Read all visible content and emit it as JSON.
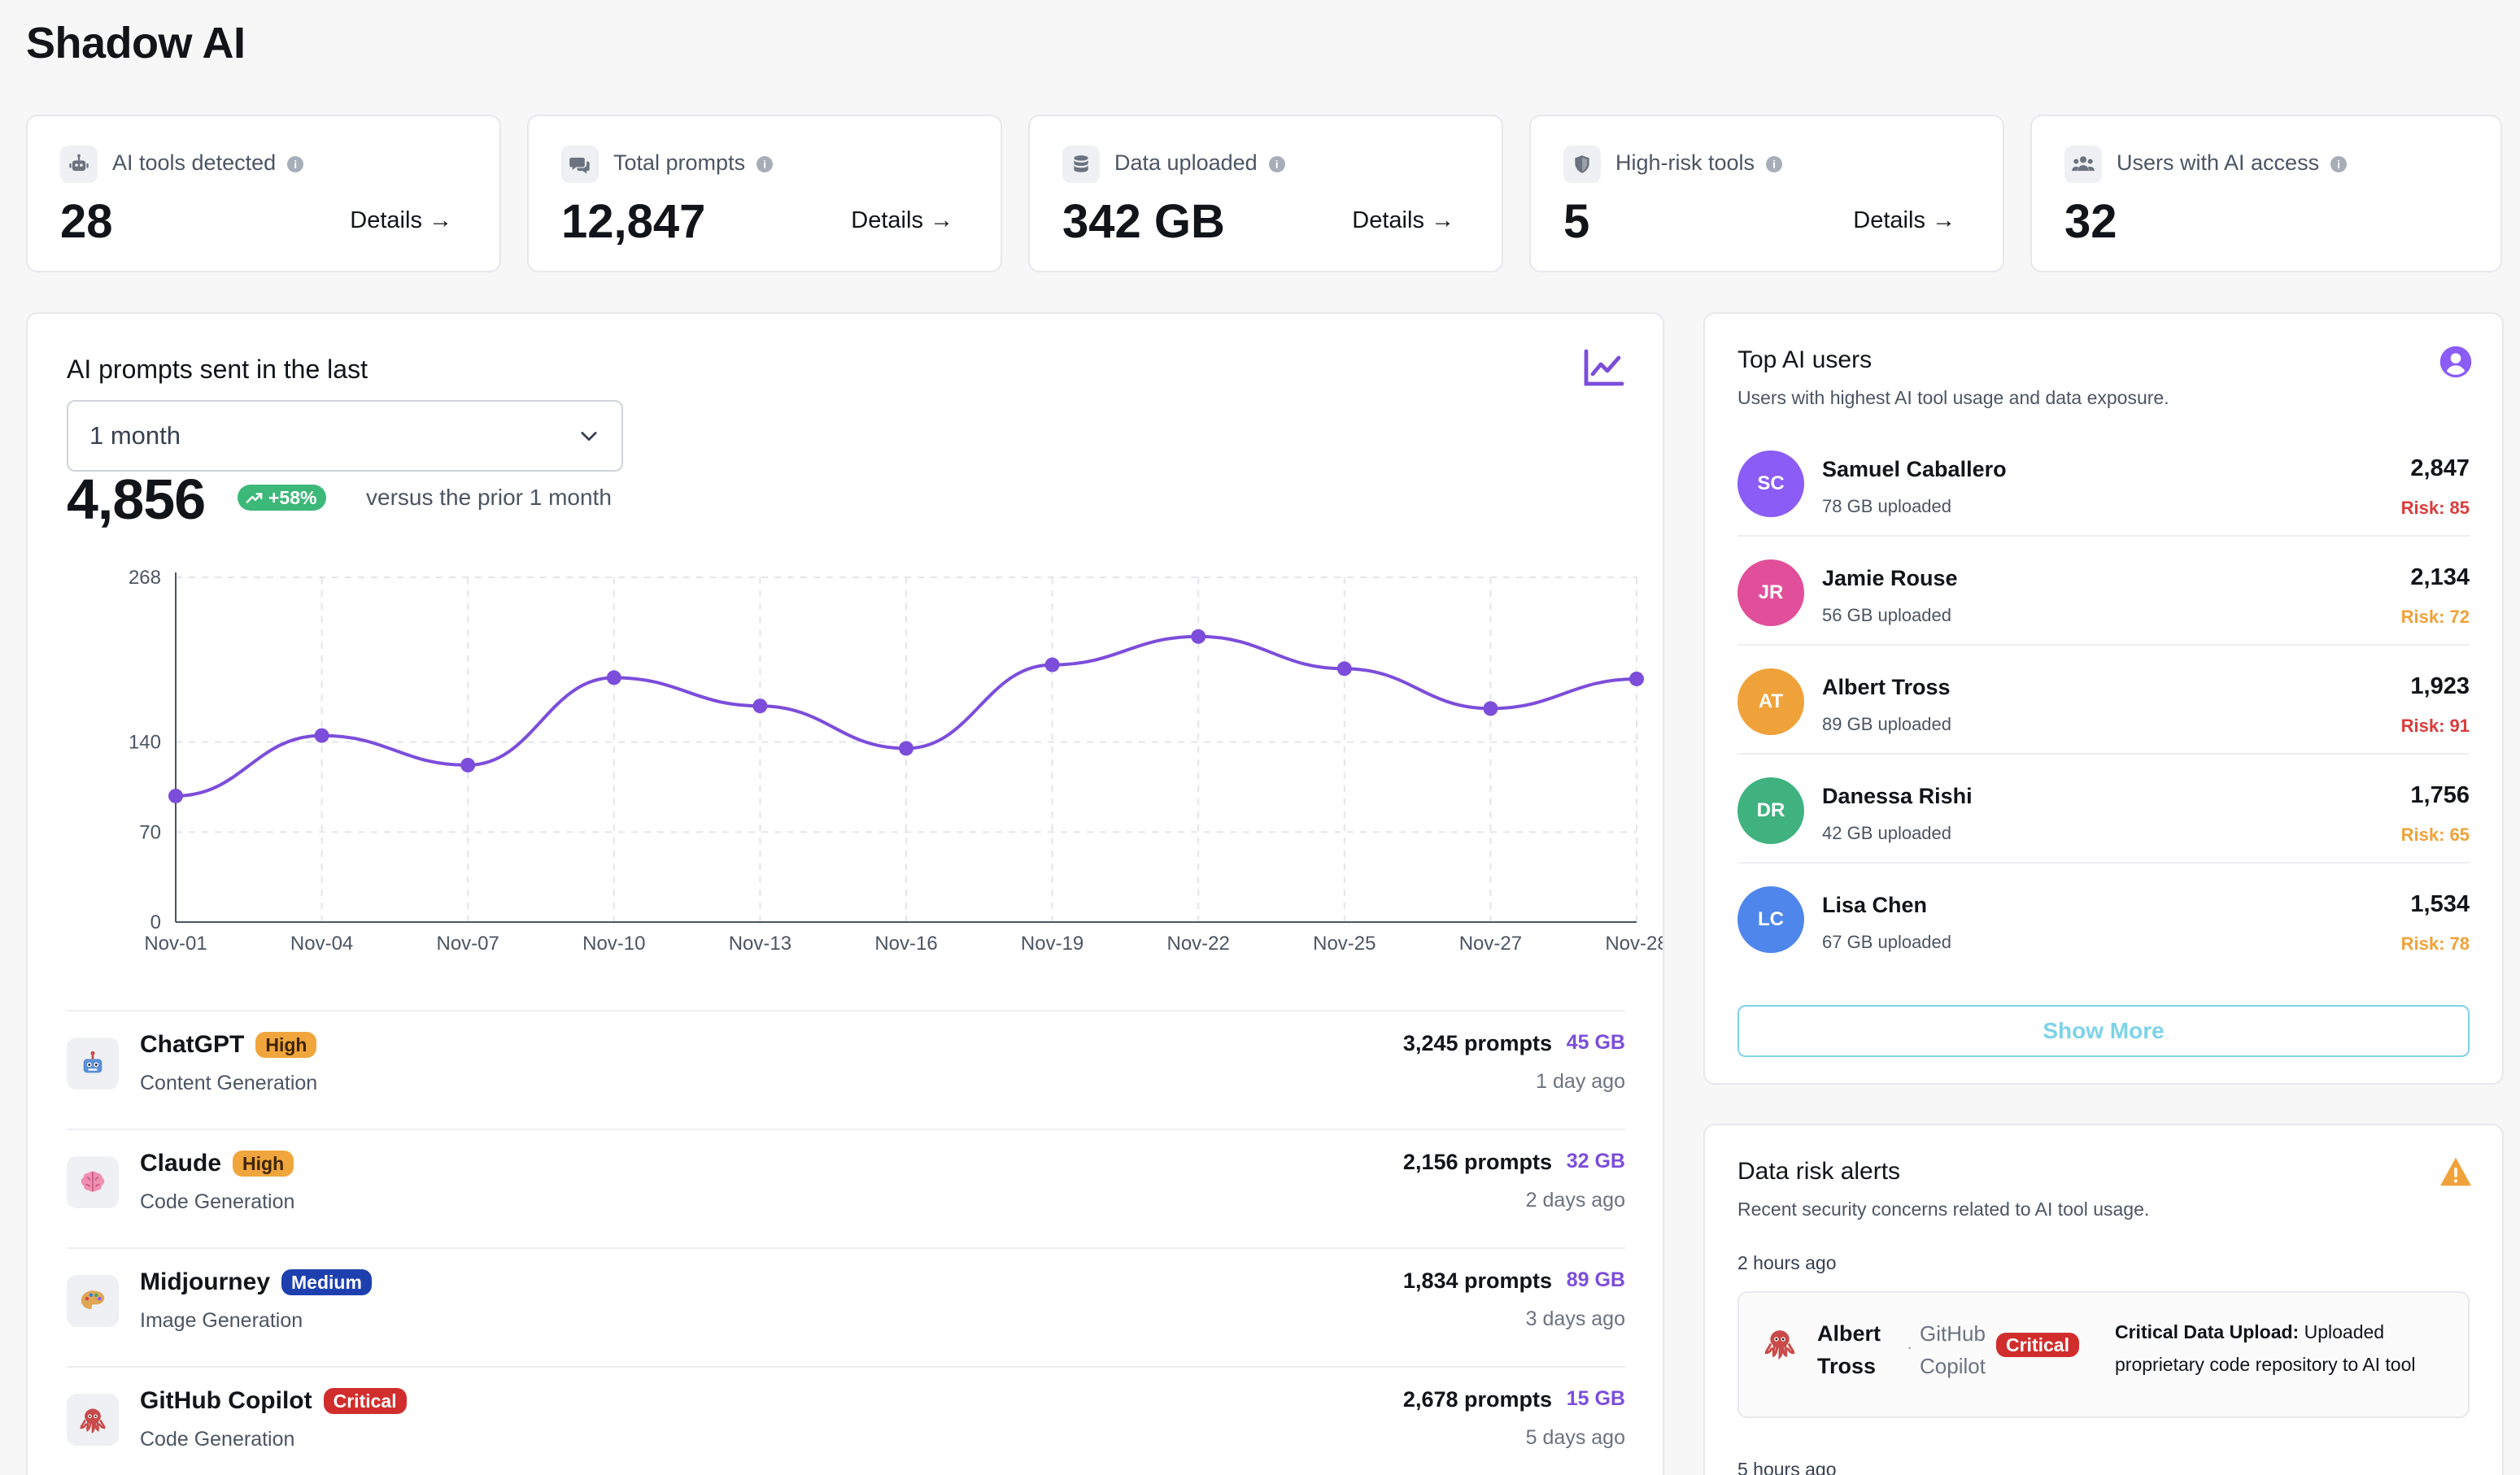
{
  "page": {
    "title": "Shadow AI"
  },
  "stats": [
    {
      "label": "AI tools detected",
      "value": "28",
      "details": "Details →",
      "icon": "robot-icon"
    },
    {
      "label": "Total prompts",
      "value": "12,847",
      "details": "Details →",
      "icon": "chat-bubbles-icon"
    },
    {
      "label": "Data uploaded",
      "value": "342 GB",
      "details": "Details →",
      "icon": "database-icon"
    },
    {
      "label": "High-risk tools",
      "value": "5",
      "details": "Details →",
      "icon": "shield-icon"
    },
    {
      "label": "Users with AI access",
      "value": "32",
      "details": "",
      "icon": "users-icon"
    }
  ],
  "prompts_card": {
    "title": "AI prompts sent in the last",
    "period_select": "1 month",
    "total": "4,856",
    "change": "+58%",
    "versus": "versus the prior 1 month"
  },
  "chart_data": {
    "type": "line",
    "x": [
      "Nov-01",
      "Nov-04",
      "Nov-07",
      "Nov-10",
      "Nov-13",
      "Nov-16",
      "Nov-19",
      "Nov-22",
      "Nov-25",
      "Nov-27",
      "Nov-28"
    ],
    "values": [
      98,
      145,
      122,
      190,
      168,
      135,
      200,
      222,
      197,
      166,
      189
    ],
    "yticks": [
      0,
      70,
      140,
      268
    ],
    "ylim": [
      0,
      268
    ],
    "grid": true,
    "color": "#7c4ddb"
  },
  "tools": [
    {
      "name": "ChatGPT",
      "risk": "High",
      "category": "Content Generation",
      "prompts": "3,245 prompts",
      "data": "45 GB",
      "ago": "1 day ago",
      "icon": "robot-icon"
    },
    {
      "name": "Claude",
      "risk": "High",
      "category": "Code Generation",
      "prompts": "2,156 prompts",
      "data": "32 GB",
      "ago": "2 days ago",
      "icon": "brain-icon"
    },
    {
      "name": "Midjourney",
      "risk": "Medium",
      "category": "Image Generation",
      "prompts": "1,834 prompts",
      "data": "89 GB",
      "ago": "3 days ago",
      "icon": "palette-icon"
    },
    {
      "name": "GitHub Copilot",
      "risk": "Critical",
      "category": "Code Generation",
      "prompts": "2,678 prompts",
      "data": "15 GB",
      "ago": "5 days ago",
      "icon": "octopus-icon"
    }
  ],
  "top_users": {
    "title": "Top AI users",
    "subtitle": "Users with highest AI tool usage and data exposure.",
    "show_more": "Show More",
    "users": [
      {
        "initials": "SC",
        "name": "Samuel Caballero",
        "uploaded": "78 GB uploaded",
        "count": "2,847",
        "risk": "Risk: 85",
        "avatar_color": "#8b5cf6",
        "risk_color": "#dc3b3b"
      },
      {
        "initials": "JR",
        "name": "Jamie Rouse",
        "uploaded": "56 GB uploaded",
        "count": "2,134",
        "risk": "Risk: 72",
        "avatar_color": "#e14f9a",
        "risk_color": "#f0a23a"
      },
      {
        "initials": "AT",
        "name": "Albert Tross",
        "uploaded": "89 GB uploaded",
        "count": "1,923",
        "risk": "Risk: 91",
        "avatar_color": "#f0a23a",
        "risk_color": "#dc3b3b"
      },
      {
        "initials": "DR",
        "name": "Danessa Rishi",
        "uploaded": "42 GB uploaded",
        "count": "1,756",
        "risk": "Risk: 65",
        "avatar_color": "#3fb27f",
        "risk_color": "#f0a23a"
      },
      {
        "initials": "LC",
        "name": "Lisa Chen",
        "uploaded": "67 GB uploaded",
        "count": "1,534",
        "risk": "Risk: 78",
        "avatar_color": "#4f86ec",
        "risk_color": "#f0a23a"
      }
    ]
  },
  "alerts": {
    "title": "Data risk alerts",
    "subtitle": "Recent security concerns related to AI tool usage.",
    "items": [
      {
        "time": "2 hours ago",
        "user_first": "Albert",
        "user_last": "Tross",
        "tool_first": "GitHub",
        "tool_last": "Copilot",
        "severity": "Critical",
        "headline": "Critical Data Upload:",
        "message": "Uploaded proprietary code repository to AI tool"
      }
    ],
    "next_time": "5 hours ago"
  }
}
